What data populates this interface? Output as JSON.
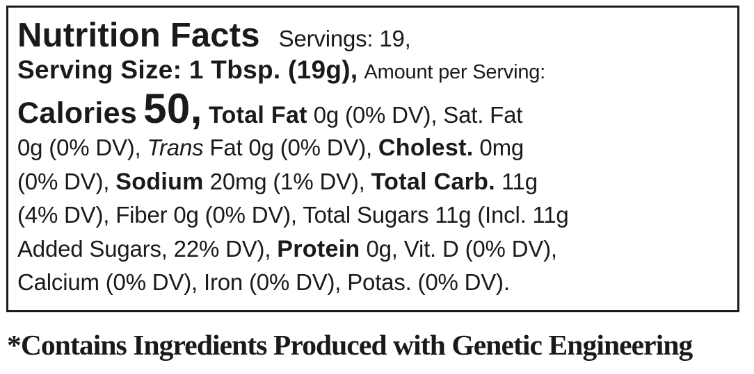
{
  "label": {
    "title": "Nutrition Facts",
    "servings": "Servings: 19,",
    "serving_size": "Serving Size: 1 Tbsp. (19g),",
    "amount_per_serving": "Amount per Serving:",
    "calories_label": "Calories",
    "calories_value": "50,",
    "total_fat_label": "Total Fat",
    "total_fat_value": "0g (0% DV), Sat. Fat",
    "sat_fat_value": "0g (0% DV),",
    "trans_label": "Trans",
    "trans_value": "Fat 0g (0% DV),",
    "cholest_label": "Cholest.",
    "cholest_value": "0mg",
    "cholest_dv": "(0% DV),",
    "sodium_label": "Sodium",
    "sodium_value": "20mg (1% DV),",
    "carb_label": "Total Carb.",
    "carb_value": "11g",
    "line5": "(4% DV), Fiber 0g (0% DV), Total Sugars 11g (Incl. 11g",
    "line6_pre": "Added Sugars, 22% DV),",
    "protein_label": "Protein",
    "protein_value": "0g, Vit. D (0% DV),",
    "line7": "Calcium (0% DV), Iron (0% DV), Potas. (0% DV)."
  },
  "footnote": "*Contains Ingredients Produced with Genetic Engineering"
}
